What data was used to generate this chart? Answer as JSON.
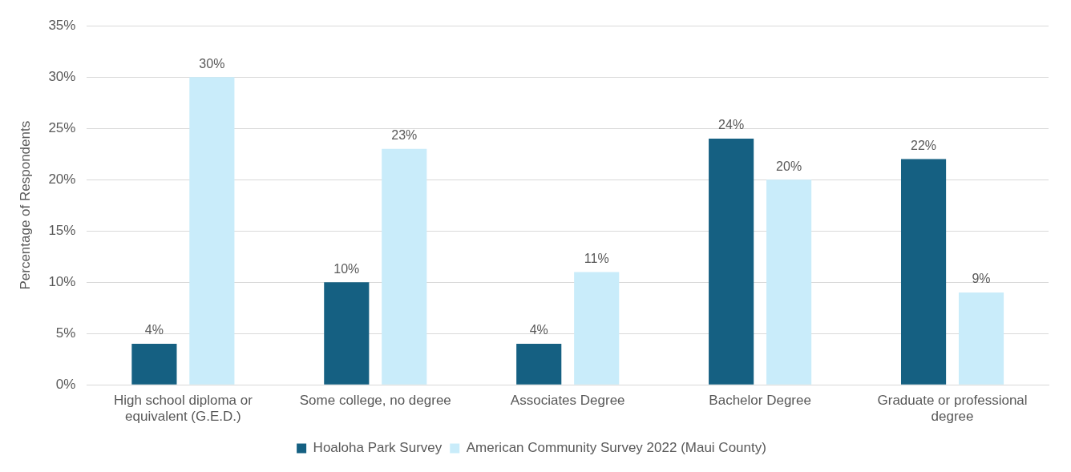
{
  "chart_data": {
    "type": "bar",
    "ylabel": "Percentage of Respondents",
    "categories": [
      "High school diploma or equivalent (G.E.D.)",
      "Some college, no degree",
      "Associates Degree",
      "Bachelor Degree",
      "Graduate or professional degree"
    ],
    "series": [
      {
        "name": "Hoaloha Park Survey",
        "color": "#156082",
        "values": [
          4,
          10,
          4,
          24,
          22
        ],
        "value_labels": [
          "4%",
          "10%",
          "4%",
          "24%",
          "22%"
        ]
      },
      {
        "name": "American Community Survey 2022 (Maui County)",
        "color": "#c9ecfa",
        "values": [
          30,
          23,
          11,
          20,
          9
        ],
        "value_labels": [
          "30%",
          "23%",
          "11%",
          "20%",
          "9%"
        ]
      }
    ],
    "ylim": [
      0,
      35
    ],
    "yticks": [
      {
        "value": 0,
        "label": "0%"
      },
      {
        "value": 5,
        "label": "5%"
      },
      {
        "value": 10,
        "label": "10%"
      },
      {
        "value": 15,
        "label": "15%"
      },
      {
        "value": 20,
        "label": "20%"
      },
      {
        "value": 25,
        "label": "25%"
      },
      {
        "value": 30,
        "label": "30%"
      },
      {
        "value": 35,
        "label": "35%"
      }
    ],
    "grid": "y",
    "legend": "bottom"
  }
}
